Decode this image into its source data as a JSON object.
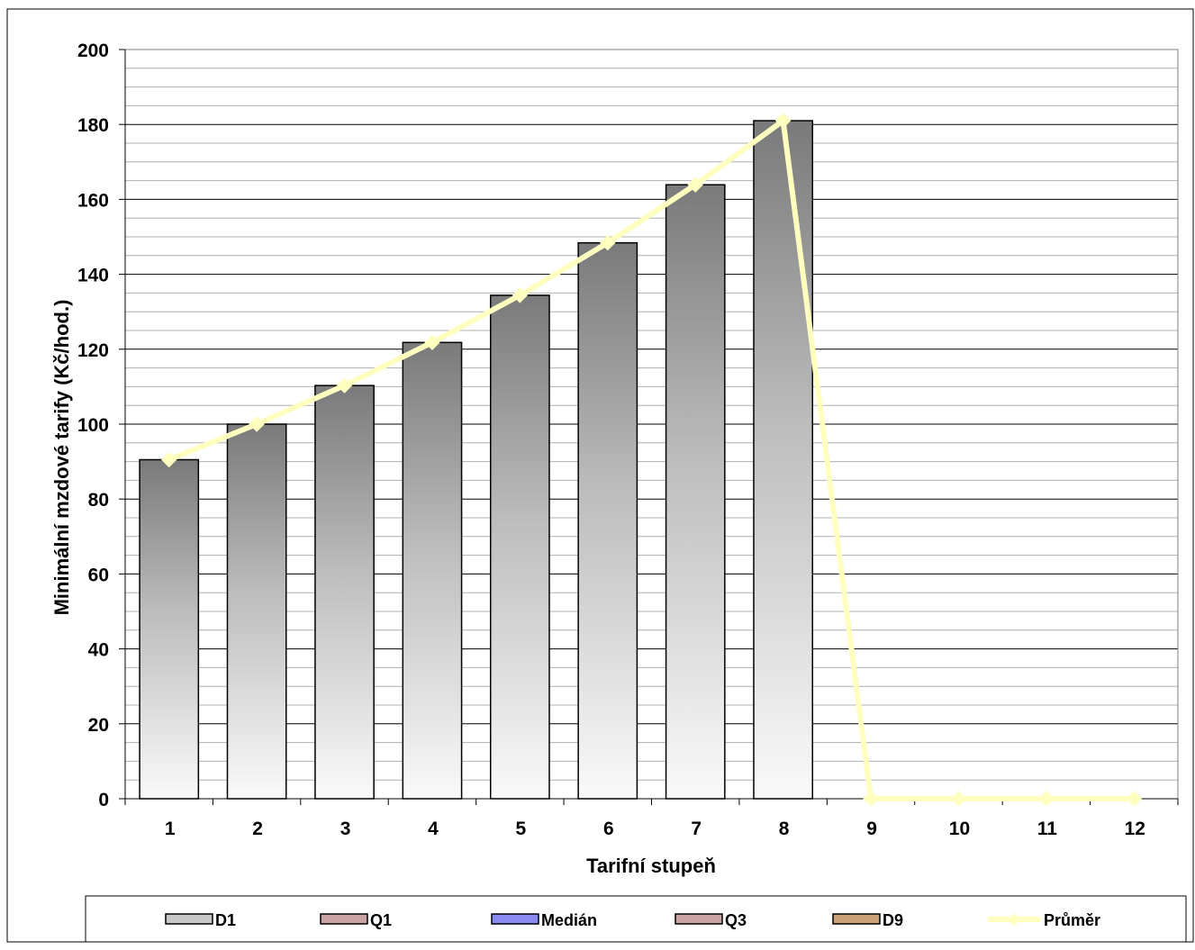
{
  "chart_data": {
    "type": "bar",
    "title": "",
    "xlabel": "Tarifní stupeň",
    "ylabel": "Minimální mzdové tarify (Kč/hod.)",
    "ylim": [
      0,
      200
    ],
    "y_ticks": [
      0,
      20,
      40,
      60,
      80,
      100,
      120,
      140,
      160,
      180,
      200
    ],
    "categories": [
      "1",
      "2",
      "3",
      "4",
      "5",
      "6",
      "7",
      "8",
      "9",
      "10",
      "11",
      "12"
    ],
    "series": [
      {
        "name": "D1",
        "kind": "bar",
        "values": [
          90.5,
          100.0,
          110.3,
          121.8,
          134.4,
          148.4,
          163.9,
          181.0,
          0,
          0,
          0,
          0
        ]
      },
      {
        "name": "Průměr",
        "kind": "line",
        "values": [
          90.5,
          100.0,
          110.3,
          121.8,
          134.4,
          148.4,
          163.9,
          181.0,
          0,
          0,
          0,
          0
        ]
      }
    ],
    "legend": {
      "placement": "bottom",
      "items": [
        {
          "label": "D1",
          "type": "bar",
          "color": "#c8c8c8"
        },
        {
          "label": "Q1",
          "type": "bar",
          "color": "#c9a3a3"
        },
        {
          "label": "Medián",
          "type": "bar",
          "color": "#8a8af0"
        },
        {
          "label": "Q3",
          "type": "bar",
          "color": "#c9a3a3"
        },
        {
          "label": "D9",
          "type": "bar",
          "color": "#c9a27a"
        },
        {
          "label": "Průměr",
          "type": "line",
          "color": "#ffffc0"
        }
      ]
    },
    "grid": true,
    "colors": {
      "bar_top": "#7a7a7a",
      "bar_bottom": "#fafafa",
      "line": "#ffffc0",
      "grid_major": "#000000",
      "grid_minor": "#b0b0b0"
    }
  }
}
